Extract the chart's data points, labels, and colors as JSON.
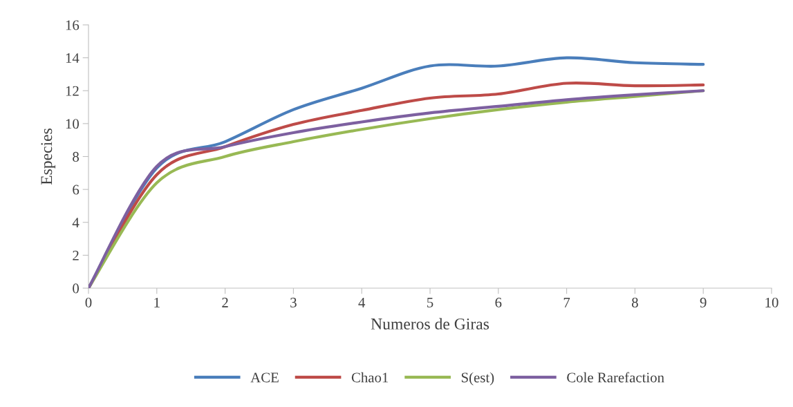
{
  "chart_data": {
    "type": "line",
    "xlabel": "Numeros de Giras",
    "ylabel": "Especies",
    "x": [
      0,
      1,
      2,
      3,
      4,
      5,
      6,
      7,
      8,
      9
    ],
    "series": [
      {
        "name": "ACE",
        "color": "#4a7ebb",
        "values": [
          0,
          7.3,
          8.9,
          10.85,
          12.15,
          13.5,
          13.5,
          14.0,
          13.7,
          13.6
        ]
      },
      {
        "name": "Chao1",
        "color": "#be4b48",
        "values": [
          0,
          6.9,
          8.6,
          9.95,
          10.8,
          11.55,
          11.8,
          12.45,
          12.3,
          12.35
        ]
      },
      {
        "name": "S(est)",
        "color": "#98b954",
        "values": [
          0,
          6.4,
          8.0,
          8.9,
          9.65,
          10.3,
          10.85,
          11.3,
          11.65,
          12.0
        ]
      },
      {
        "name": "Cole Rarefaction",
        "color": "#7d60a0",
        "values": [
          0,
          7.4,
          8.6,
          9.45,
          10.1,
          10.65,
          11.05,
          11.45,
          11.75,
          12.0
        ]
      }
    ],
    "xlim": [
      0,
      10
    ],
    "xticks": [
      0,
      1,
      2,
      3,
      4,
      5,
      6,
      7,
      8,
      9,
      10
    ],
    "ylim": [
      0,
      16
    ],
    "yticks": [
      0,
      2,
      4,
      6,
      8,
      10,
      12,
      14,
      16
    ],
    "grid": false,
    "legend": "bottom",
    "marker": "none",
    "line_style": "solid"
  }
}
